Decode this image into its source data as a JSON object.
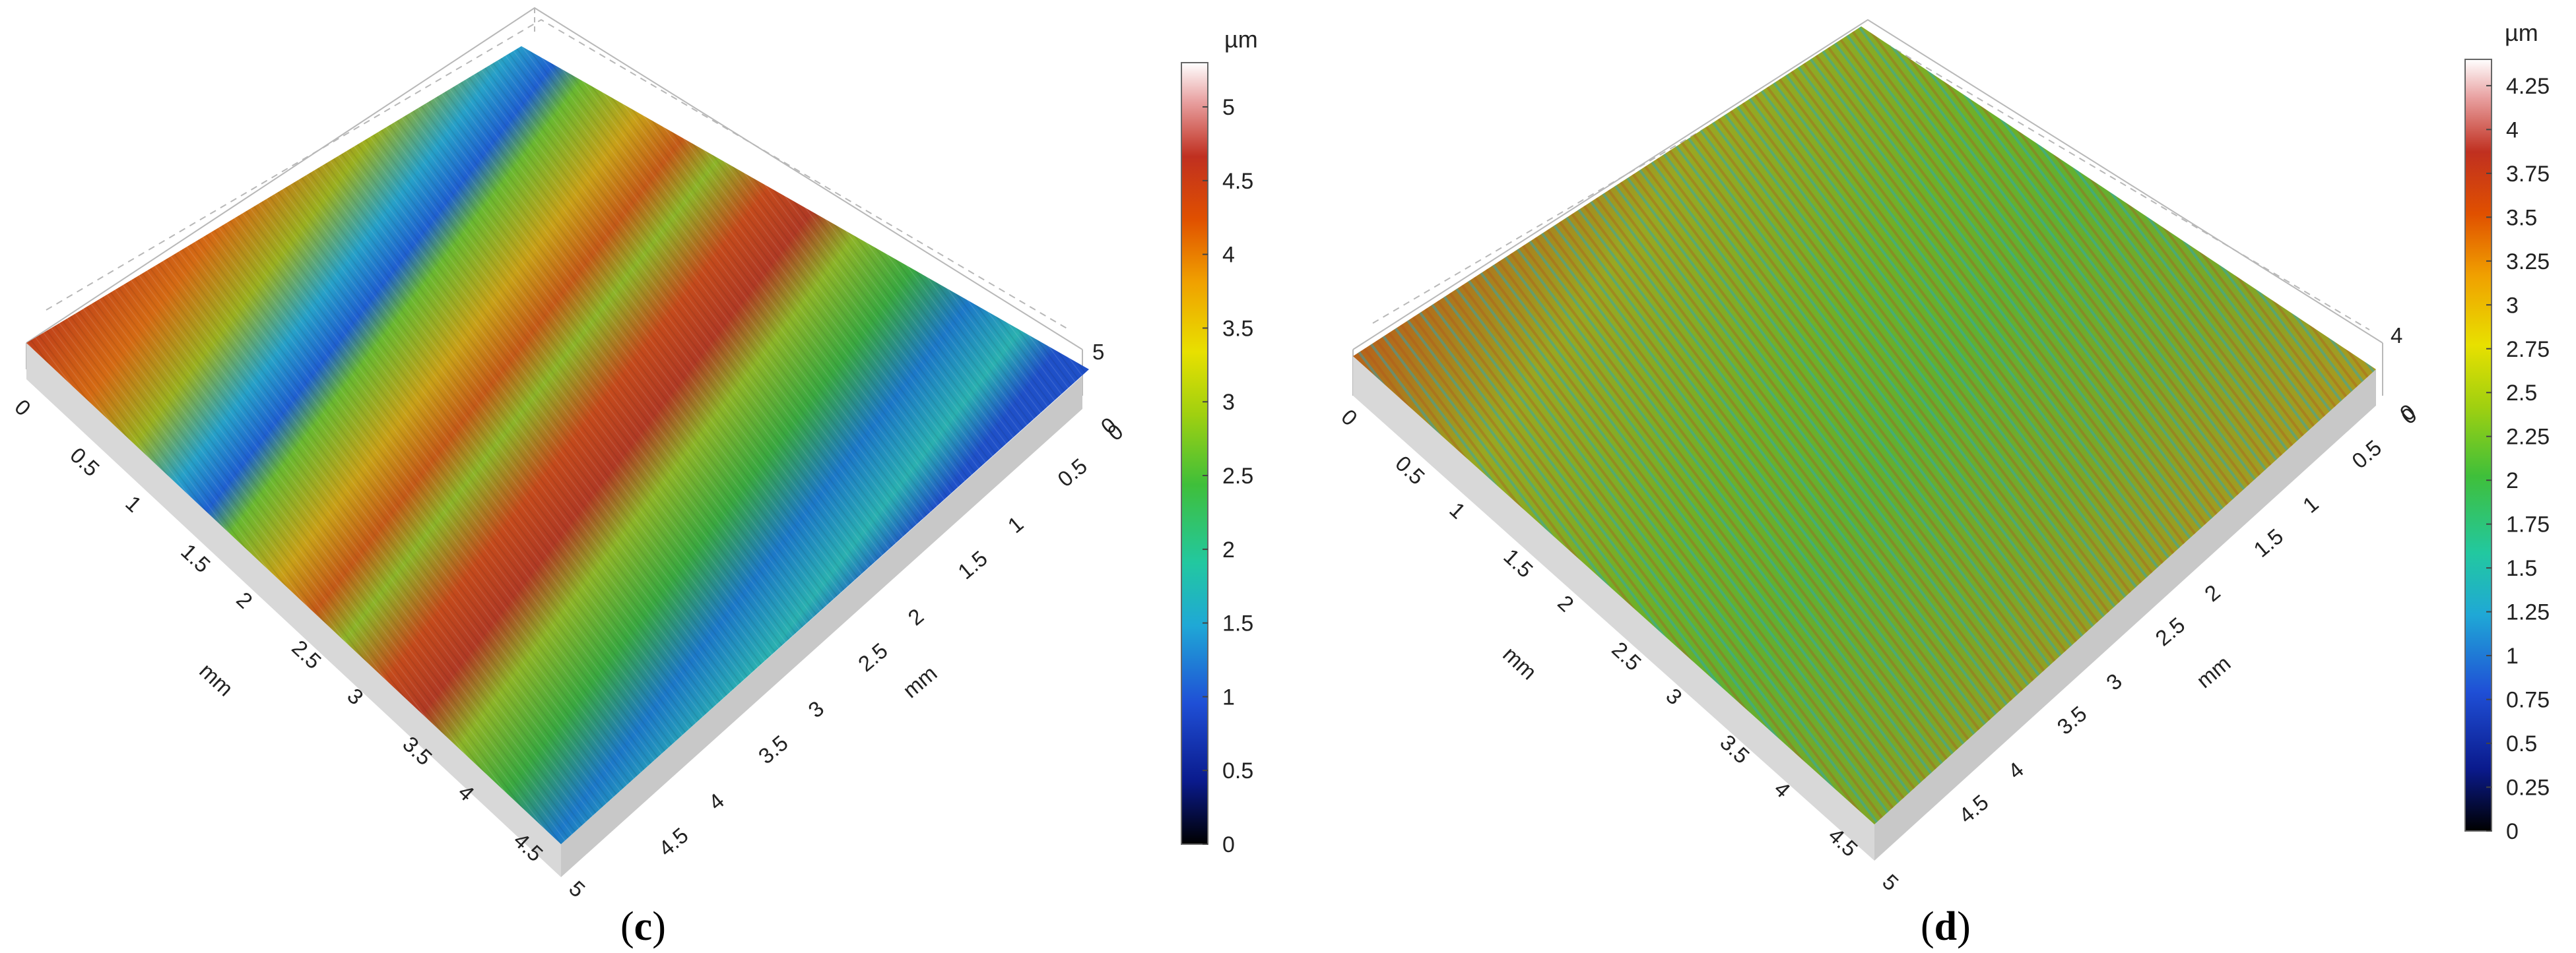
{
  "panels": [
    {
      "label_open": "(",
      "label_letter": "c",
      "label_close": ")",
      "axis_unit_left": "mm",
      "axis_unit_right": "mm",
      "left_ticks": [
        "0",
        "0.5",
        "1",
        "1.5",
        "2",
        "2.5",
        "3",
        "3.5",
        "4",
        "4.5",
        "5"
      ],
      "right_ticks": [
        "0",
        "0.5",
        "1",
        "1.5",
        "2",
        "2.5",
        "3",
        "3.5",
        "4",
        "4.5"
      ],
      "z_ticks": [
        "0",
        "5"
      ],
      "colorbar_unit": "µm",
      "colorbar_ticks": [
        "5",
        "4.5",
        "4",
        "3.5",
        "3",
        "2.5",
        "2",
        "1.5",
        "1",
        "0.5",
        "0"
      ],
      "colorbar_max": 5.3
    },
    {
      "label_open": "(",
      "label_letter": "d",
      "label_close": ")",
      "axis_unit_left": "mm",
      "axis_unit_right": "mm",
      "left_ticks": [
        "0",
        "0.5",
        "1",
        "1.5",
        "2",
        "2.5",
        "3",
        "3.5",
        "4",
        "4.5",
        "5"
      ],
      "right_ticks": [
        "0",
        "0.5",
        "1",
        "1.5",
        "2",
        "2.5",
        "3",
        "3.5",
        "4",
        "4.5"
      ],
      "z_ticks": [
        "0",
        "4"
      ],
      "colorbar_unit": "µm",
      "colorbar_ticks": [
        "4.25",
        "4",
        "3.75",
        "3.5",
        "3.25",
        "3",
        "2.75",
        "2.5",
        "2.25",
        "2",
        "1.75",
        "1.5",
        "1.25",
        "1",
        "0.75",
        "0.5",
        "0.25",
        "0"
      ],
      "colorbar_max": 4.4
    }
  ],
  "colors": {
    "colormap": [
      "#000000",
      "#0a1a8c",
      "#1f4fd6",
      "#1fa8d6",
      "#22c8a0",
      "#3fbf3a",
      "#a0d010",
      "#e8e000",
      "#f0a000",
      "#e05000",
      "#c03020",
      "#e8a0a0",
      "#ffffff"
    ]
  }
}
